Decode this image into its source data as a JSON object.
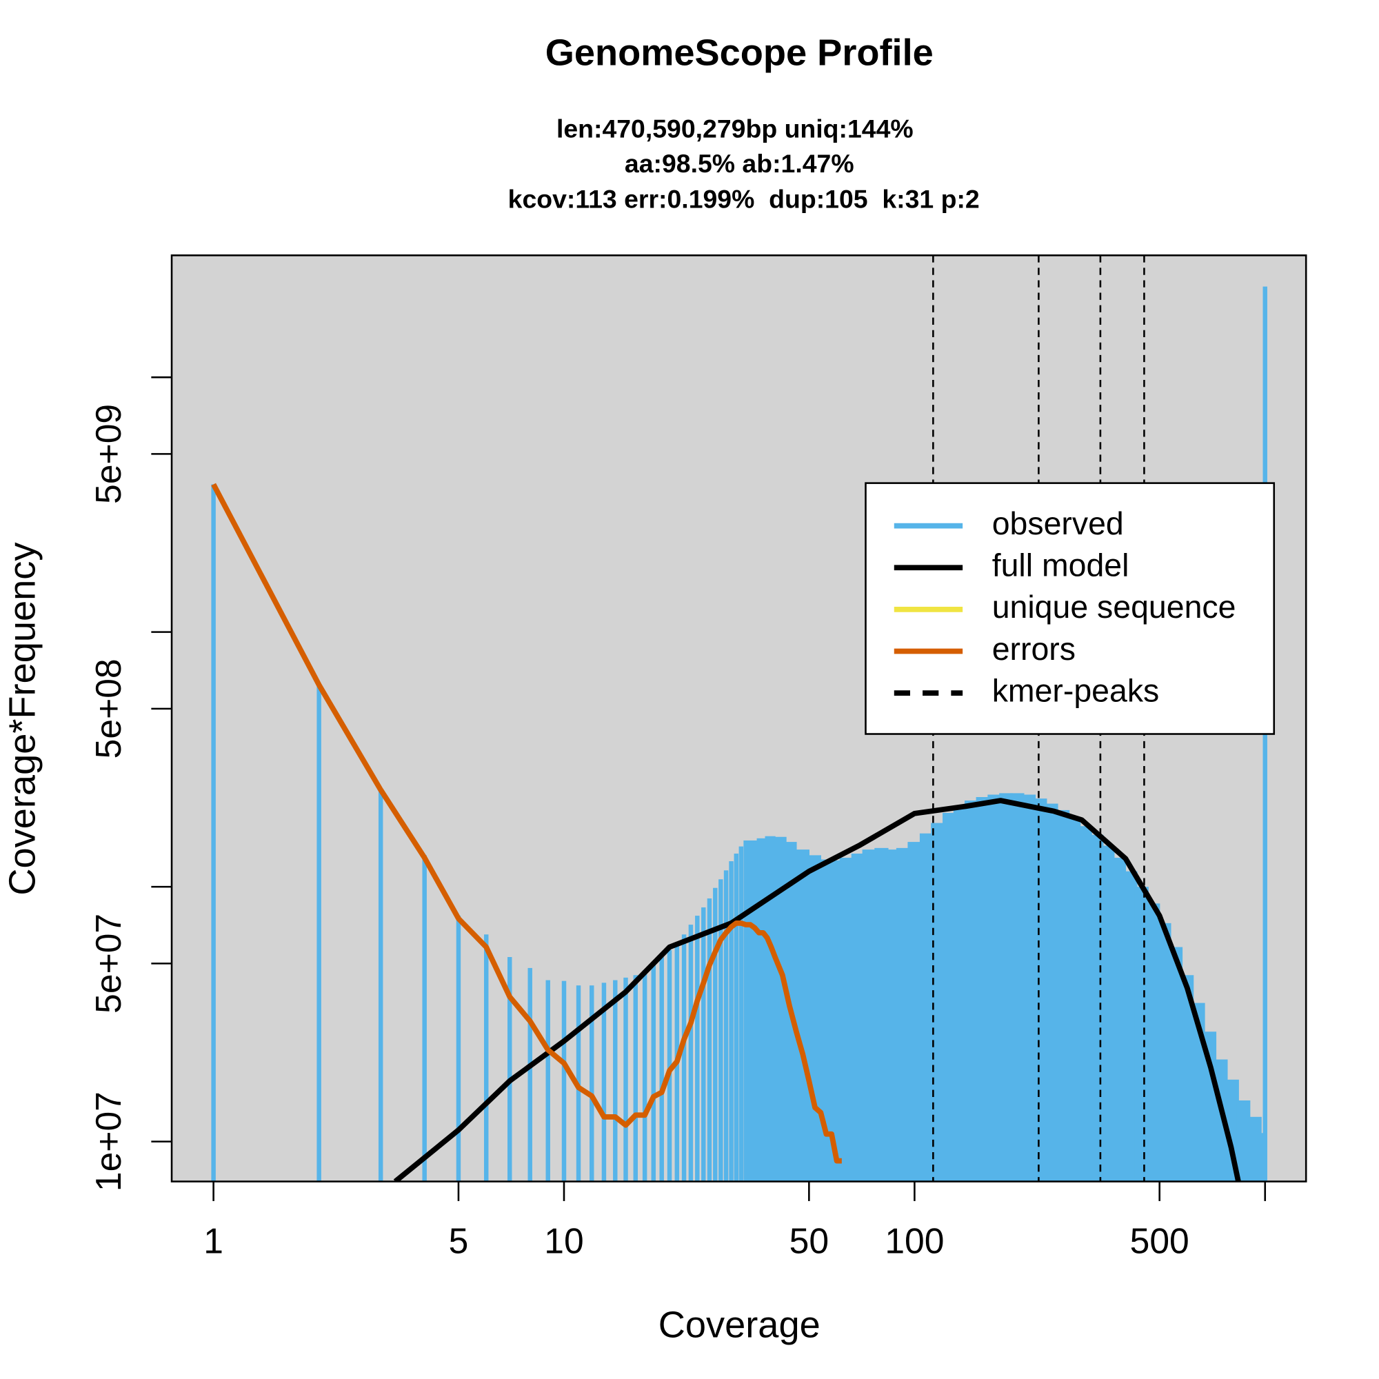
{
  "chart_data": {
    "type": "line",
    "title": "GenomeScope Profile",
    "subtitle": [
      "len:470,590,279bp uniq:144%",
      "aa:98.5% ab:1.47%",
      "kcov:113 err:0.199%  dup:105  k:31 p:2"
    ],
    "xlabel": "Coverage",
    "ylabel": "Coverage*Frequency",
    "xlog": true,
    "ylog": true,
    "background": "#d3d3d3",
    "xlim": [
      0.76,
      1309
    ],
    "ylim": [
      6970000,
      30100000000
    ],
    "xticks": [
      1,
      5,
      10,
      50,
      100,
      500
    ],
    "xminor_ticks": [
      1000
    ],
    "yticks": [
      {
        "value": 10000000,
        "label": "1e+07"
      },
      {
        "value": 50000000,
        "label": "5e+07"
      },
      {
        "value": 500000000,
        "label": "5e+08"
      },
      {
        "value": 5000000000,
        "label": "5e+09"
      }
    ],
    "yminor_ticks": [
      100000000,
      1000000000,
      10000000000
    ],
    "legend_position": "right",
    "series": [
      {
        "name": "observed",
        "color": "#56B4E9",
        "type": "bar",
        "x": [
          1,
          2,
          3,
          4,
          5,
          6,
          7,
          8,
          9,
          10,
          11,
          12,
          13,
          14,
          15,
          16,
          17,
          18,
          19,
          20,
          21,
          22,
          23,
          24,
          25,
          26,
          27,
          28,
          29,
          30,
          31,
          32,
          33,
          36,
          38,
          40,
          43,
          46,
          50,
          54,
          58,
          62,
          67,
          72,
          78,
          84,
          90,
          97,
          105,
          113,
          122,
          131,
          141,
          152,
          164,
          177,
          190,
          205,
          221,
          238,
          256,
          276,
          297,
          320,
          345,
          371,
          400,
          431,
          464,
          500,
          538,
          580,
          624,
          672,
          724,
          780,
          840,
          905,
          975,
          1000
        ],
        "values": [
          3800000000,
          620000000,
          240000000,
          133000000,
          77000000,
          65000000,
          53000000,
          48000000,
          43000000,
          42700000,
          41000000,
          41000000,
          42000000,
          43000000,
          44000000,
          45000000,
          47000000,
          50000000,
          53000000,
          56500000,
          60000000,
          65000000,
          71000000,
          77000000,
          83000000,
          90000000,
          99000000,
          107000000,
          116000000,
          126000000,
          135000000,
          144000000,
          152000000,
          155000000,
          158000000,
          157000000,
          150000000,
          140000000,
          133000000,
          128000000,
          127000000,
          130000000,
          135000000,
          140000000,
          142000000,
          140000000,
          142000000,
          150000000,
          162000000,
          178000000,
          195000000,
          208000000,
          218000000,
          225000000,
          230000000,
          233000000,
          233000000,
          230000000,
          222000000,
          212000000,
          200000000,
          186000000,
          173000000,
          160000000,
          145000000,
          130000000,
          115000000,
          100000000,
          86000000,
          72000000,
          58000000,
          45000000,
          35000000,
          27000000,
          21000000,
          17500000,
          14500000,
          12500000,
          10800000,
          22700000000
        ]
      },
      {
        "name": "full model",
        "color": "#000000",
        "type": "line",
        "x": [
          3.3,
          5,
          7,
          10,
          15,
          20,
          30,
          50,
          70,
          100,
          140,
          176,
          250,
          300,
          400,
          500,
          600,
          700,
          800,
          839
        ],
        "values": [
          6970000,
          11100000,
          17300000,
          24800000,
          38700000,
          58000000,
          72000000,
          115000000,
          146000000,
          194000000,
          207000000,
          218000000,
          198000000,
          183000000,
          129000000,
          77000000,
          40000000,
          19500000,
          9500000,
          6970000
        ]
      },
      {
        "name": "unique sequence",
        "color": "#F0E442",
        "type": "line"
      },
      {
        "name": "errors",
        "color": "#D55E00",
        "type": "line",
        "x": [
          1,
          2,
          3,
          4,
          5,
          6,
          7,
          8,
          9,
          10,
          11,
          12,
          13,
          14,
          15,
          16,
          17,
          18,
          19,
          20,
          21,
          22,
          23,
          24,
          25,
          26,
          27,
          28,
          29,
          30,
          31,
          32,
          33,
          34,
          35,
          36,
          37,
          38,
          39,
          40,
          42,
          44,
          46,
          48,
          50,
          52,
          54,
          56,
          58,
          60,
          62
        ],
        "values": [
          3800000000,
          620000000,
          240000000,
          130000000,
          75000000,
          58000000,
          37000000,
          29700000,
          22900000,
          20300000,
          16300000,
          15100000,
          12500000,
          12500000,
          11600000,
          12700000,
          12700000,
          15000000,
          15600000,
          19000000,
          20600000,
          25200000,
          29200000,
          35700000,
          41900000,
          49300000,
          55500000,
          62000000,
          66000000,
          69600000,
          72000000,
          72000000,
          71000000,
          71000000,
          69000000,
          66000000,
          66000000,
          63000000,
          58000000,
          53000000,
          45000000,
          34000000,
          27000000,
          22000000,
          17300000,
          13600000,
          13000000,
          10700000,
          10700000,
          8400000,
          8400000
        ]
      },
      {
        "name": "kmer-peaks",
        "color": "#000000",
        "type": "vline",
        "x": [
          113,
          226,
          339,
          452
        ]
      }
    ]
  }
}
